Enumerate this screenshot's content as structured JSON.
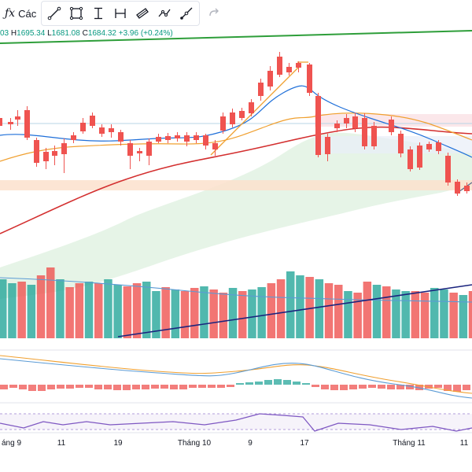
{
  "toolbar": {
    "fx_label": "Các",
    "tools": [
      {
        "name": "trend-line-tool-icon"
      },
      {
        "name": "rectangle-tool-icon"
      },
      {
        "name": "price-range-tool-icon"
      },
      {
        "name": "date-range-tool-icon"
      },
      {
        "name": "parallel-channel-tool-icon"
      },
      {
        "name": "path-tool-icon"
      },
      {
        "name": "ray-tool-icon"
      }
    ],
    "undo_icon": "redo-arrow-icon"
  },
  "ohlc": {
    "open_value": "03",
    "high_label": "H",
    "high_value": "1695.34",
    "low_label": "L",
    "low_value": "1681.08",
    "close_label": "C",
    "close_value": "1684.32",
    "change": "+3.96 (+0.24%)"
  },
  "x_axis": {
    "labels": [
      "áng 9",
      "11",
      "19",
      "Tháng 10",
      "9",
      "17",
      "Tháng 11",
      "11"
    ]
  },
  "colors": {
    "up": "#26a69a",
    "down": "#ef5350",
    "ma_red": "#d32f2f",
    "ma_blue": "#1e6fd9",
    "ma_orange": "#f0a030",
    "green_trend": "#2e9e3a",
    "ichimoku_cloud": "#c8e6c9",
    "zone_fill": "#fbe0cc",
    "macd_signal": "#f0a030",
    "macd_line": "#5b9bd5",
    "vol_ma": "#5b9bd5",
    "navy": "#1a237e",
    "rsi": "#7e57c2"
  }
}
